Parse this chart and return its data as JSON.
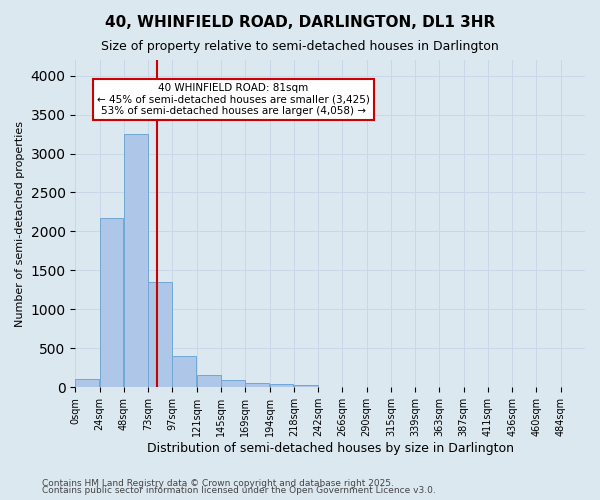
{
  "title1": "40, WHINFIELD ROAD, DARLINGTON, DL1 3HR",
  "title2": "Size of property relative to semi-detached houses in Darlington",
  "xlabel": "Distribution of semi-detached houses by size in Darlington",
  "ylabel": "Number of semi-detached properties",
  "bin_labels": [
    "0sqm",
    "24sqm",
    "48sqm",
    "73sqm",
    "97sqm",
    "121sqm",
    "145sqm",
    "169sqm",
    "194sqm",
    "218sqm",
    "242sqm",
    "266sqm",
    "290sqm",
    "315sqm",
    "339sqm",
    "363sqm",
    "387sqm",
    "411sqm",
    "436sqm",
    "460sqm",
    "484sqm"
  ],
  "bar_values": [
    110,
    2170,
    3250,
    1350,
    400,
    160,
    90,
    55,
    45,
    30,
    10,
    5,
    3,
    2,
    1,
    0,
    0,
    0,
    0,
    0,
    0
  ],
  "bar_color": "#aec6e8",
  "bar_edge_color": "#6fa8d4",
  "grid_color": "#c8d8e8",
  "background_color": "#dce8f0",
  "annotation_box_text": "40 WHINFIELD ROAD: 81sqm\n← 45% of semi-detached houses are smaller (3,425)\n53% of semi-detached houses are larger (4,058) →",
  "annotation_box_color": "#ffffff",
  "annotation_box_edge_color": "#cc0000",
  "property_line_x": 81,
  "property_line_color": "#cc0000",
  "ylim": [
    0,
    4200
  ],
  "yticks": [
    0,
    500,
    1000,
    1500,
    2000,
    2500,
    3000,
    3500,
    4000
  ],
  "footer1": "Contains HM Land Registry data © Crown copyright and database right 2025.",
  "footer2": "Contains public sector information licensed under the Open Government Licence v3.0.",
  "bin_width": 24
}
